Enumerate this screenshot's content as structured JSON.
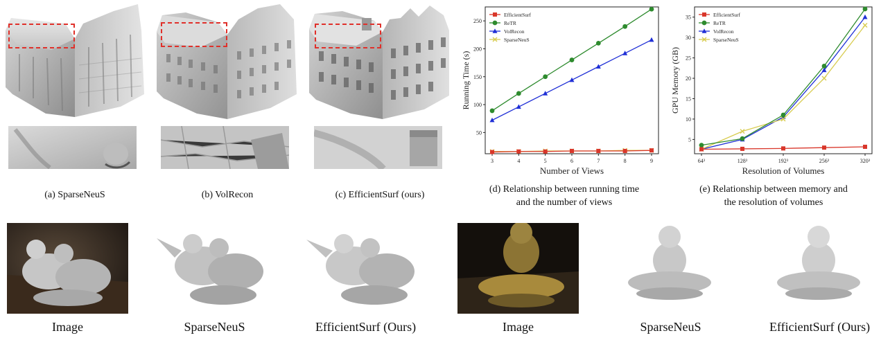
{
  "top_captions": {
    "a": "(a) SparseNeuS",
    "b": "(b) VolRecon",
    "c": "(c) EfficientSurf (ours)",
    "d_line1": "(d) Relationship between running time",
    "d_line2": "and the number of views",
    "e_line1": "(e) Relationship between memory and",
    "e_line2": "the resolution of volumes"
  },
  "bottom_captions": [
    "Image",
    "SparseNeuS",
    "EfficientSurf (Ours)",
    "Image",
    "SparseNeuS",
    "EfficientSurf (Ours)"
  ],
  "colors": {
    "EfficientSurf": "#d9372b",
    "ReTR": "#2e8b2e",
    "VolRecon": "#1f2fd6",
    "SparseNeuS": "#d8cc50",
    "highlight_box": "#e0302a"
  },
  "chart_data": [
    {
      "type": "line",
      "ylabel": "Running Time (s)",
      "xlabel": "Number of Views",
      "x": [
        3,
        4,
        5,
        6,
        7,
        8,
        9
      ],
      "xticks": [
        "3",
        "4",
        "5",
        "6",
        "7",
        "8",
        "9"
      ],
      "ylim": [
        12,
        275
      ],
      "yticks": [
        50,
        100,
        150,
        200,
        250
      ],
      "legend": "top-left",
      "series": [
        {
          "name": "EfficientSurf",
          "marker": "square",
          "values": [
            15,
            16,
            16,
            17,
            17,
            17,
            18
          ]
        },
        {
          "name": "ReTR",
          "marker": "circle",
          "values": [
            89,
            120,
            150,
            180,
            210,
            240,
            271
          ]
        },
        {
          "name": "VolRecon",
          "marker": "triangle",
          "values": [
            72,
            96,
            120,
            144,
            168,
            192,
            216
          ]
        },
        {
          "name": "SparseNeuS",
          "marker": "x",
          "values": [
            16,
            16,
            17,
            17,
            17,
            18,
            18
          ]
        }
      ]
    },
    {
      "type": "line",
      "ylabel": "GPU Memory (GB)",
      "xlabel": "Resolution of Volumes",
      "x": [
        64,
        128,
        192,
        256,
        320
      ],
      "xticks": [
        "64³",
        "128³",
        "192³",
        "256³",
        "320³"
      ],
      "ylim": [
        1.5,
        37.5
      ],
      "yticks": [
        5,
        10,
        15,
        20,
        25,
        30,
        35
      ],
      "legend": "top-left",
      "series": [
        {
          "name": "EfficientSurf",
          "marker": "square",
          "values": [
            2.6,
            2.7,
            2.8,
            3.0,
            3.2
          ]
        },
        {
          "name": "ReTR",
          "marker": "circle",
          "values": [
            3.6,
            5.2,
            11.0,
            23.0,
            37.0
          ]
        },
        {
          "name": "VolRecon",
          "marker": "triangle",
          "values": [
            2.6,
            5.0,
            10.5,
            22.0,
            35.0
          ]
        },
        {
          "name": "SparseNeuS",
          "marker": "x",
          "values": [
            2.6,
            7.0,
            10.0,
            20.0,
            33.0
          ]
        }
      ]
    }
  ]
}
